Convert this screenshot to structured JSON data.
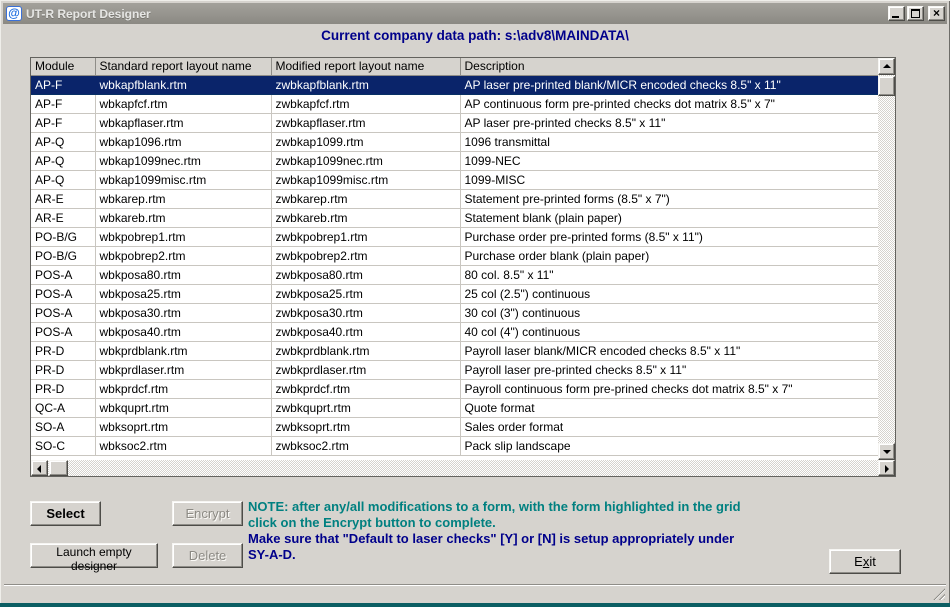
{
  "window": {
    "title": "UT-R Report Designer",
    "app_icon_glyph": "@",
    "close_glyph": "×"
  },
  "header": {
    "data_path": "Current company data path: s:\\adv8\\MAINDATA\\"
  },
  "table": {
    "columns": [
      "Module",
      "Standard report layout name",
      "Modified report layout name",
      "Description"
    ],
    "selected_row_index": 0,
    "rows": [
      {
        "module": "AP-F",
        "standard": "wbkapfblank.rtm",
        "modified": "zwbkapfblank.rtm",
        "description": "AP laser pre-printed blank/MICR encoded checks 8.5\" x 11\""
      },
      {
        "module": "AP-F",
        "standard": "wbkapfcf.rtm",
        "modified": "zwbkapfcf.rtm",
        "description": "AP continuous form pre-printed checks dot matrix 8.5\" x 7\""
      },
      {
        "module": "AP-F",
        "standard": "wbkapflaser.rtm",
        "modified": "zwbkapflaser.rtm",
        "description": "AP laser pre-printed checks 8.5\" x 11\""
      },
      {
        "module": "AP-Q",
        "standard": "wbkap1096.rtm",
        "modified": "zwbkap1099.rtm",
        "description": "1096 transmittal"
      },
      {
        "module": "AP-Q",
        "standard": "wbkap1099nec.rtm",
        "modified": "zwbkap1099nec.rtm",
        "description": "1099-NEC"
      },
      {
        "module": "AP-Q",
        "standard": "wbkap1099misc.rtm",
        "modified": "zwbkap1099misc.rtm",
        "description": "1099-MISC"
      },
      {
        "module": "AR-E",
        "standard": "wbkarep.rtm",
        "modified": "zwbkarep.rtm",
        "description": "Statement pre-printed forms (8.5\" x 7\")"
      },
      {
        "module": "AR-E",
        "standard": "wbkareb.rtm",
        "modified": "zwbkareb.rtm",
        "description": "Statement blank (plain paper)"
      },
      {
        "module": "PO-B/G",
        "standard": "wbkpobrep1.rtm",
        "modified": "zwbkpobrep1.rtm",
        "description": "Purchase order pre-printed forms (8.5\" x 11\")"
      },
      {
        "module": "PO-B/G",
        "standard": "wbkpobrep2.rtm",
        "modified": "zwbkpobrep2.rtm",
        "description": "Purchase order blank (plain paper)"
      },
      {
        "module": "POS-A",
        "standard": "wbkposa80.rtm",
        "modified": "zwbkposa80.rtm",
        "description": "80 col. 8.5\" x 11\""
      },
      {
        "module": "POS-A",
        "standard": "wbkposa25.rtm",
        "modified": "zwbkposa25.rtm",
        "description": "25 col (2.5\") continuous"
      },
      {
        "module": "POS-A",
        "standard": "wbkposa30.rtm",
        "modified": "zwbkposa30.rtm",
        "description": "30 col (3\") continuous"
      },
      {
        "module": "POS-A",
        "standard": "wbkposa40.rtm",
        "modified": "zwbkposa40.rtm",
        "description": "40 col (4\") continuous"
      },
      {
        "module": "PR-D",
        "standard": "wbkprdblank.rtm",
        "modified": "zwbkprdblank.rtm",
        "description": "Payroll laser blank/MICR encoded checks 8.5\" x 11\""
      },
      {
        "module": "PR-D",
        "standard": "wbkprdlaser.rtm",
        "modified": "zwbkprdlaser.rtm",
        "description": "Payroll laser pre-printed checks 8.5\" x 11\""
      },
      {
        "module": "PR-D",
        "standard": "wbkprdcf.rtm",
        "modified": "zwbkprdcf.rtm",
        "description": "Payroll continuous form pre-prined checks dot matrix 8.5\" x 7\""
      },
      {
        "module": "QC-A",
        "standard": "wbkquprt.rtm",
        "modified": "zwbkquprt.rtm",
        "description": "Quote format"
      },
      {
        "module": "SO-A",
        "standard": "wbksoprt.rtm",
        "modified": "zwbksoprt.rtm",
        "description": "Sales order format"
      },
      {
        "module": "SO-C",
        "standard": "wbksoc2.rtm",
        "modified": "zwbksoc2.rtm",
        "description": "Pack slip landscape"
      }
    ]
  },
  "actions": {
    "select": "Select",
    "encrypt": "Encrypt",
    "launch_designer": "Launch empty designer",
    "delete": "Delete",
    "exit": {
      "pre": "E",
      "mnemonic": "x",
      "post": "it"
    }
  },
  "notes": {
    "encrypt_note": [
      "NOTE: after any/all modifications to a form, with the form highlighted in the grid",
      "click on the Encrypt button to complete."
    ],
    "setup_note": [
      "Make sure that \"Default to laser checks\" [Y] or [N] is setup appropriately under",
      "SY-A-D."
    ]
  },
  "colors": {
    "selection_bg": "#0A246A",
    "note_teal": "#008080",
    "note_navy": "#00008B",
    "window_face": "#D6D3CE"
  }
}
